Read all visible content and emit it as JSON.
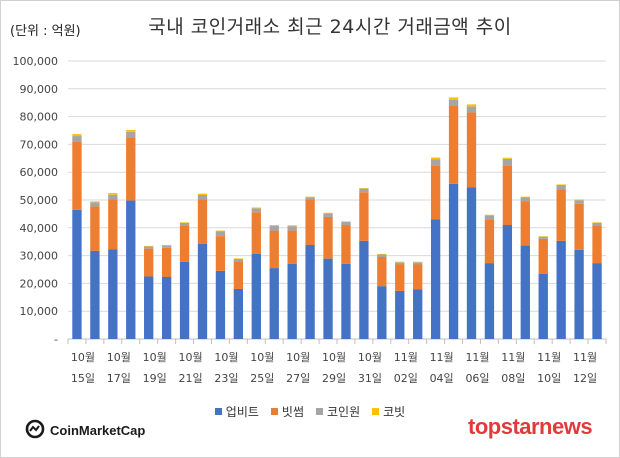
{
  "header": {
    "unit_label": "(단위 : 억원)",
    "title": "국내 코인거래소 최근 24시간 거래금액 추이"
  },
  "chart_data": {
    "type": "bar",
    "stacked": true,
    "title": "국내 코인거래소 최근 24시간 거래금액 추이",
    "unit": "억원",
    "ylim": [
      0,
      100000
    ],
    "yticks": [
      0,
      10000,
      20000,
      30000,
      40000,
      50000,
      60000,
      70000,
      80000,
      90000,
      100000
    ],
    "ytick_labels": [
      "-",
      "10,000",
      "20,000",
      "30,000",
      "40,000",
      "50,000",
      "60,000",
      "70,000",
      "80,000",
      "90,000",
      "100,000"
    ],
    "grid": true,
    "legend_position": "bottom",
    "categories": [
      "10/15",
      "10/16",
      "10/17",
      "10/18",
      "10/19",
      "10/20",
      "10/21",
      "10/22",
      "10/23",
      "10/24",
      "10/25",
      "10/26",
      "10/27",
      "10/28",
      "10/29",
      "10/30",
      "10/31",
      "11/01",
      "11/02",
      "11/03",
      "11/04",
      "11/05",
      "11/06",
      "11/07",
      "11/08",
      "11/09",
      "11/10",
      "11/11",
      "11/12",
      "11/13"
    ],
    "x_labels": [
      {
        "index": 0,
        "month": "10월",
        "day": "15일"
      },
      {
        "index": 2,
        "month": "10월",
        "day": "17일"
      },
      {
        "index": 4,
        "month": "10월",
        "day": "19일"
      },
      {
        "index": 6,
        "month": "10월",
        "day": "21일"
      },
      {
        "index": 8,
        "month": "10월",
        "day": "23일"
      },
      {
        "index": 10,
        "month": "10월",
        "day": "25일"
      },
      {
        "index": 12,
        "month": "10월",
        "day": "27일"
      },
      {
        "index": 14,
        "month": "10월",
        "day": "29일"
      },
      {
        "index": 16,
        "month": "10월",
        "day": "31일"
      },
      {
        "index": 18,
        "month": "11월",
        "day": "02일"
      },
      {
        "index": 20,
        "month": "11월",
        "day": "04일"
      },
      {
        "index": 22,
        "month": "11월",
        "day": "06일"
      },
      {
        "index": 24,
        "month": "11월",
        "day": "08일"
      },
      {
        "index": 26,
        "month": "11월",
        "day": "10일"
      },
      {
        "index": 28,
        "month": "11월",
        "day": "12일"
      }
    ],
    "series": [
      {
        "name": "업비트",
        "color": "#4472c4",
        "values": [
          46500,
          31700,
          32200,
          49800,
          22500,
          22300,
          27800,
          34200,
          24500,
          18000,
          30600,
          25500,
          27000,
          33800,
          28900,
          27000,
          35300,
          19000,
          17300,
          17800,
          43000,
          55800,
          54500,
          27300,
          41000,
          33600,
          23500,
          35300,
          32100,
          27300
        ]
      },
      {
        "name": "빗썸",
        "color": "#ed7d31",
        "values": [
          24500,
          16000,
          18000,
          22500,
          10000,
          10500,
          13000,
          16000,
          12500,
          10000,
          15000,
          13500,
          12000,
          16500,
          15000,
          14000,
          17500,
          10500,
          9500,
          9000,
          19500,
          28000,
          27000,
          15500,
          21500,
          16000,
          12500,
          18500,
          16500,
          13500
        ]
      },
      {
        "name": "코인원",
        "color": "#a5a5a5",
        "values": [
          2000,
          1500,
          1700,
          2200,
          800,
          800,
          1000,
          1600,
          1800,
          800,
          1400,
          1700,
          1600,
          700,
          1300,
          1100,
          1300,
          900,
          800,
          800,
          2200,
          2200,
          2200,
          1700,
          2300,
          1300,
          800,
          1600,
          1300,
          1000
        ]
      },
      {
        "name": "코빗",
        "color": "#ffc000",
        "values": [
          700,
          300,
          600,
          700,
          200,
          200,
          200,
          500,
          200,
          200,
          300,
          300,
          300,
          200,
          200,
          200,
          200,
          200,
          200,
          200,
          600,
          900,
          700,
          200,
          400,
          300,
          200,
          200,
          300,
          200
        ]
      }
    ]
  },
  "footer": {
    "cmc_text": "CoinMarketCap",
    "brand_text": "topstarnews"
  }
}
